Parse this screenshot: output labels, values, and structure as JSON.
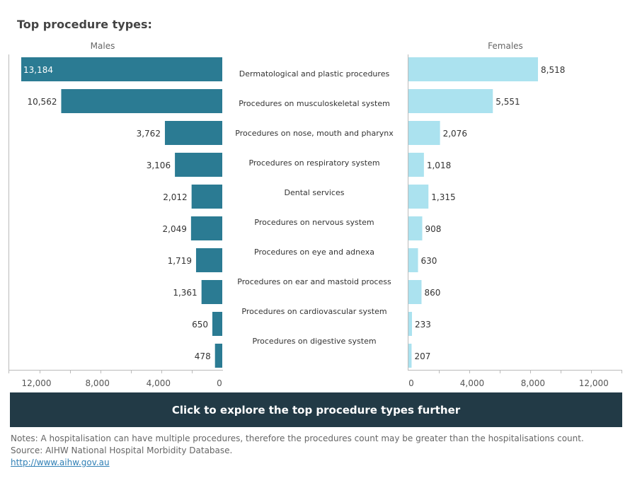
{
  "title": "Top procedure types:",
  "cta_label": "Click to explore the top procedure types further",
  "notes": {
    "note": "Notes: A hospitalisation can have multiple procedures, therefore the procedures count may be greater than the hospitalisations count.",
    "source": "Source: AIHW National Hospital Morbidity Database.",
    "link": "http://www.aihw.gov.au"
  },
  "colors": {
    "males": "#2b7b93",
    "females": "#abe2ef",
    "axis": "#bbbbbb",
    "cta": "#223a46"
  },
  "chart_data": [
    {
      "type": "bar",
      "orientation": "horizontal",
      "direction": "reversed",
      "title": "Males",
      "xlim": [
        0,
        14000
      ],
      "ticks": [
        0,
        4000,
        8000,
        12000
      ],
      "tick_labels": [
        "0",
        "4,000",
        "8,000",
        "12,000"
      ],
      "grid": false,
      "categories": [
        "Dermatological and plastic procedures",
        "Procedures on musculoskeletal system",
        "Procedures on nose, mouth and pharynx",
        "Procedures on respiratory system",
        "Dental services",
        "Procedures on nervous system",
        "Procedures on eye and adnexa",
        "Procedures on ear and mastoid process",
        "Procedures on cardiovascular system",
        "Procedures on digestive system"
      ],
      "values": [
        13184,
        10562,
        3762,
        3106,
        2012,
        2049,
        1719,
        1361,
        650,
        478
      ],
      "value_labels": [
        "13,184",
        "10,562",
        "3,762",
        "3,106",
        "2,012",
        "2,049",
        "1,719",
        "1,361",
        "650",
        "478"
      ]
    },
    {
      "type": "bar",
      "orientation": "horizontal",
      "title": "Females",
      "xlim": [
        0,
        14000
      ],
      "ticks": [
        0,
        4000,
        8000,
        12000
      ],
      "tick_labels": [
        "0",
        "4,000",
        "8,000",
        "12,000"
      ],
      "grid": false,
      "categories": [
        "Dermatological and plastic procedures",
        "Procedures on musculoskeletal system",
        "Procedures on nose, mouth and pharynx",
        "Procedures on respiratory system",
        "Dental services",
        "Procedures on nervous system",
        "Procedures on eye and adnexa",
        "Procedures on ear and mastoid process",
        "Procedures on cardiovascular system",
        "Procedures on digestive system"
      ],
      "values": [
        8518,
        5551,
        2076,
        1018,
        1315,
        908,
        630,
        860,
        233,
        207
      ],
      "value_labels": [
        "8,518",
        "5,551",
        "2,076",
        "1,018",
        "1,315",
        "908",
        "630",
        "860",
        "233",
        "207"
      ]
    }
  ]
}
